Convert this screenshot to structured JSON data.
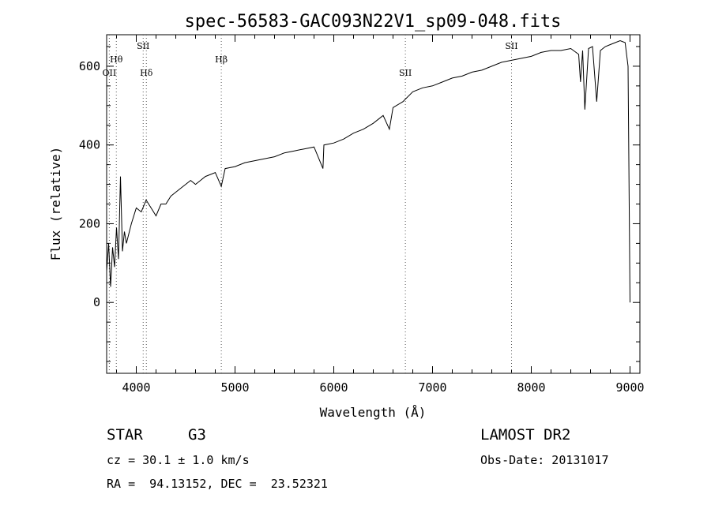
{
  "chart_data": {
    "type": "line",
    "title": "spec-56583-GAC093N22V1_sp09-048.fits",
    "xlabel": "Wavelength (Å)",
    "ylabel": "Flux (relative)",
    "xlim": [
      3700,
      9100
    ],
    "ylim": [
      -180,
      680
    ],
    "x_ticks": [
      4000,
      5000,
      6000,
      7000,
      8000,
      9000
    ],
    "y_ticks": [
      0,
      200,
      400,
      600
    ],
    "grid": false,
    "series": [
      {
        "x": [
          3700,
          3720,
          3740,
          3760,
          3780,
          3800,
          3820,
          3840,
          3860,
          3880,
          3900,
          3950,
          4000,
          4050,
          4100,
          4150,
          4200,
          4250,
          4300,
          4350,
          4400,
          4450,
          4500,
          4550,
          4600,
          4700,
          4800,
          4861,
          4900,
          5000,
          5100,
          5200,
          5300,
          5400,
          5500,
          5600,
          5700,
          5800,
          5890,
          5900,
          6000,
          6100,
          6200,
          6300,
          6400,
          6500,
          6563,
          6600,
          6700,
          6800,
          6900,
          7000,
          7100,
          7200,
          7300,
          7400,
          7500,
          7600,
          7700,
          7800,
          7900,
          8000,
          8100,
          8200,
          8300,
          8400,
          8480,
          8498,
          8520,
          8542,
          8580,
          8620,
          8662,
          8700,
          8750,
          8800,
          8850,
          8900,
          8950,
          8980,
          9000
        ],
        "y": [
          80,
          150,
          40,
          140,
          90,
          190,
          110,
          320,
          130,
          180,
          150,
          200,
          240,
          230,
          260,
          240,
          220,
          250,
          250,
          270,
          280,
          290,
          300,
          310,
          300,
          320,
          330,
          295,
          340,
          345,
          355,
          360,
          365,
          370,
          380,
          385,
          390,
          395,
          340,
          400,
          405,
          415,
          430,
          440,
          455,
          475,
          440,
          495,
          510,
          535,
          545,
          550,
          560,
          570,
          575,
          585,
          590,
          600,
          610,
          615,
          620,
          625,
          635,
          640,
          640,
          645,
          630,
          560,
          640,
          490,
          645,
          650,
          510,
          640,
          650,
          655,
          660,
          665,
          660,
          600,
          0
        ]
      }
    ],
    "line_marks": [
      {
        "label": "Hθ",
        "x": 3798,
        "row": 2
      },
      {
        "label": "OII",
        "x": 3727,
        "row": 3
      },
      {
        "label": "SII",
        "x": 4070,
        "row": 1
      },
      {
        "label": "Hδ",
        "x": 4102,
        "row": 3
      },
      {
        "label": "Hβ",
        "x": 4861,
        "row": 2
      },
      {
        "label": "SII",
        "x": 6725,
        "row": 3
      },
      {
        "label": "SII",
        "x": 7800,
        "row": 1
      }
    ]
  },
  "info": {
    "class_label": "STAR",
    "subclass": "G3",
    "cz": "cz = 30.1 ± 1.0 km/s",
    "coords": "RA =  94.13152, DEC =  23.52321",
    "survey": "LAMOST DR2",
    "obs_date": "Obs-Date: 20131017"
  }
}
